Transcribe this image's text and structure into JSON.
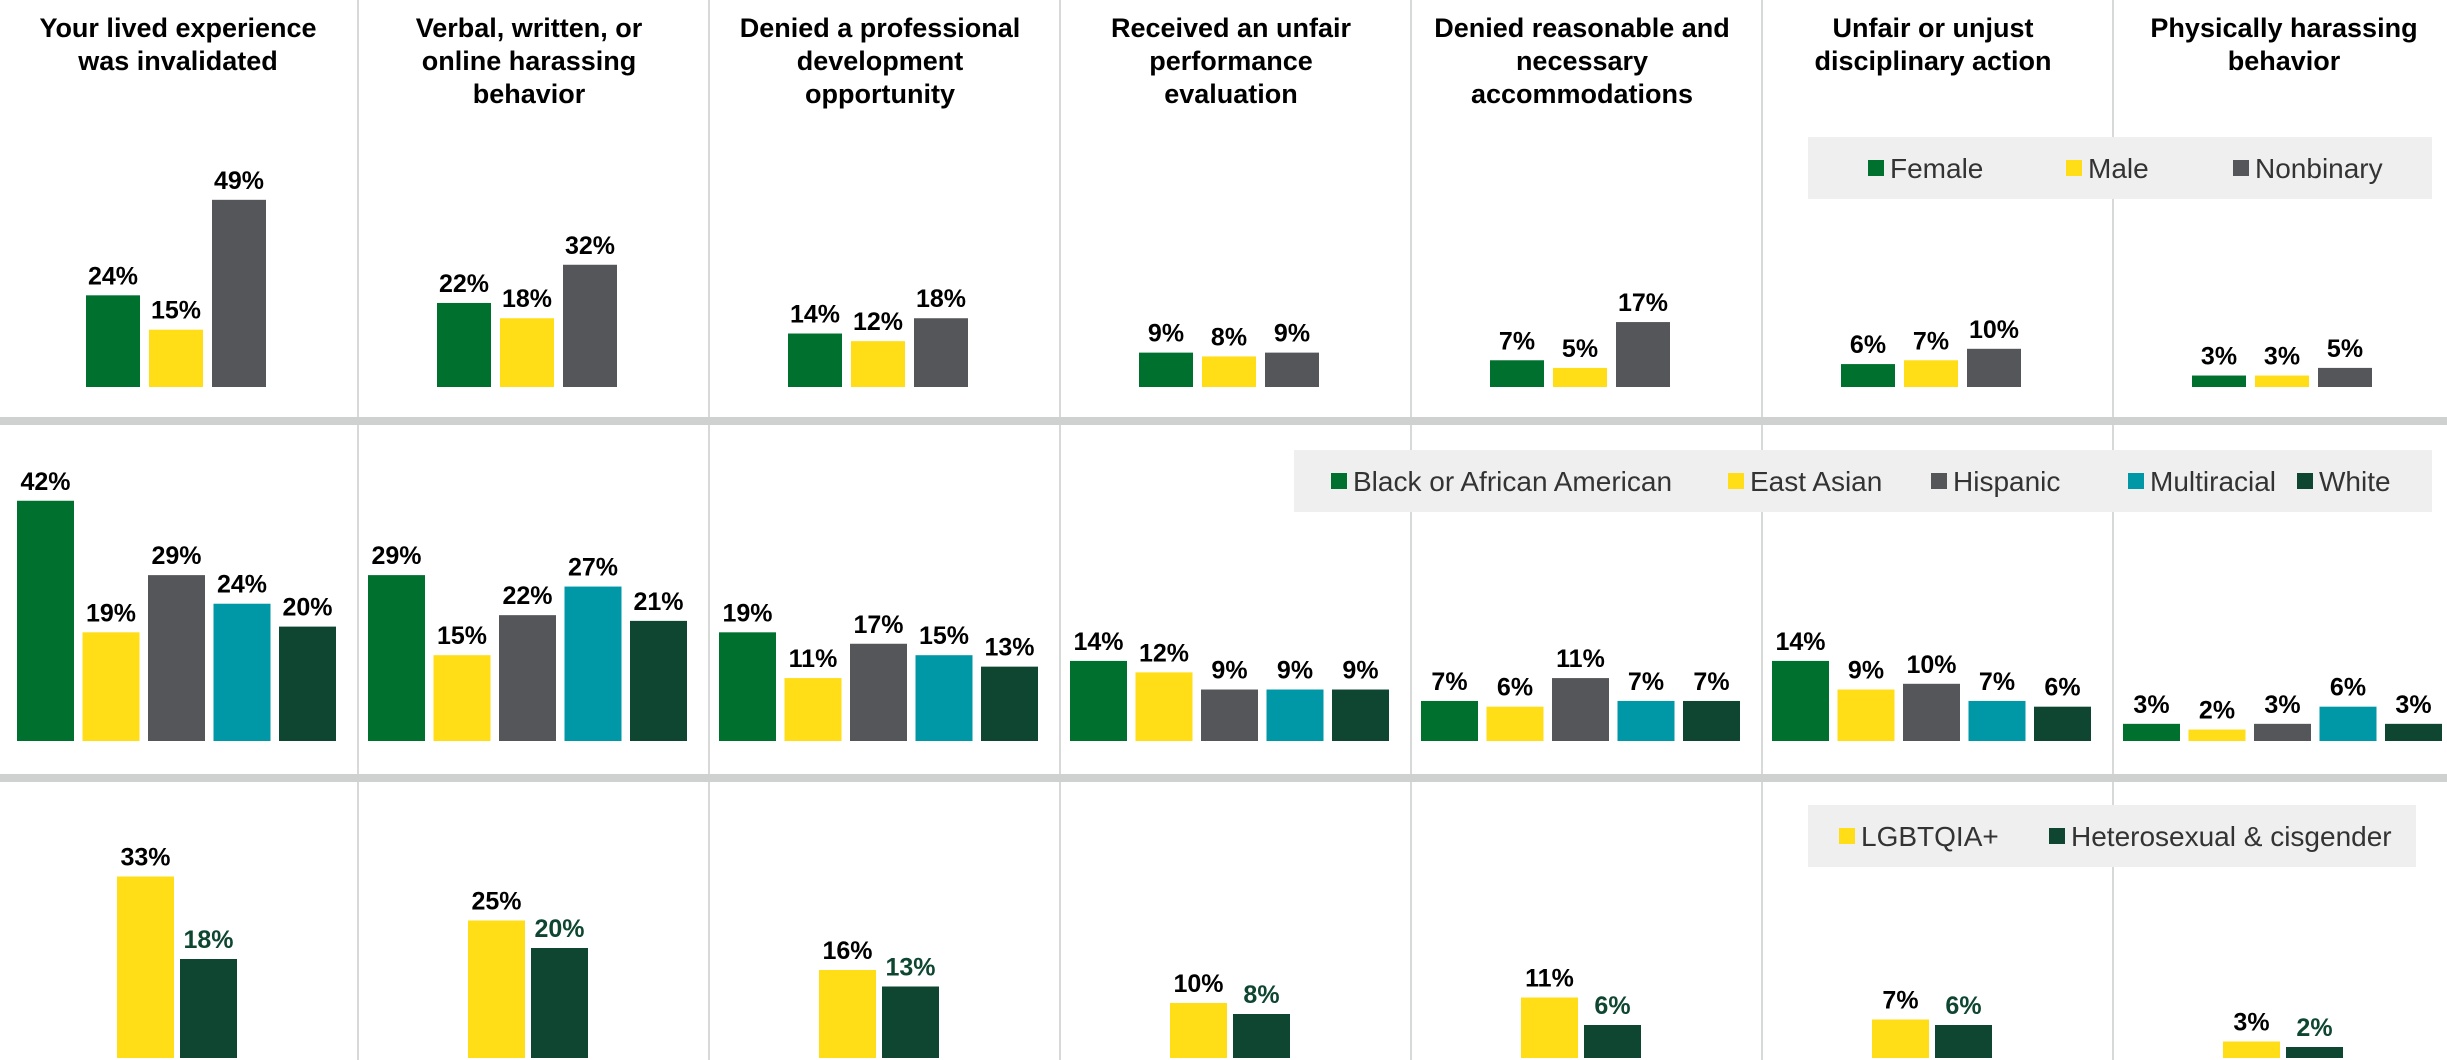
{
  "colors": {
    "female": "#00702F",
    "male": "#FFDE17",
    "nonbinary": "#545659",
    "black": "#00702F",
    "east_asian": "#FFDE17",
    "hispanic": "#545659",
    "multiracial": "#0097A7",
    "white": "#0E4631",
    "lgbtqia": "#FFDE17",
    "hetero": "#0E4631",
    "separator": "#CFD1D0",
    "divider": "#D7D8D8",
    "legend_bg": "#EFEFEF"
  },
  "chart_data": {
    "type": "bar",
    "categories": [
      "Your lived experience was invalidated",
      "Verbal, written, or online harassing behavior",
      "Denied a professional development opportunity",
      "Received an unfair performance evaluation",
      "Denied reasonable and necessary accommodations",
      "Unfair or unjust disciplinary action",
      "Physically harassing behavior"
    ],
    "category_lines": [
      [
        "Your lived experience",
        "was invalidated"
      ],
      [
        "Verbal, written, or",
        "online harassing",
        "behavior"
      ],
      [
        "Denied a professional",
        "development",
        "opportunity"
      ],
      [
        "Received an unfair",
        "performance",
        "evaluation"
      ],
      [
        "Denied reasonable and",
        "necessary",
        "accommodations"
      ],
      [
        "Unfair or unjust",
        "disciplinary action"
      ],
      [
        "Physically harassing",
        "behavior"
      ]
    ],
    "panels": [
      {
        "id": "gender",
        "legend": "top-right",
        "series": [
          {
            "name": "Female",
            "color_key": "female",
            "values": [
              24,
              22,
              14,
              9,
              7,
              6,
              3
            ]
          },
          {
            "name": "Male",
            "color_key": "male",
            "values": [
              15,
              18,
              12,
              8,
              5,
              7,
              3
            ]
          },
          {
            "name": "Nonbinary",
            "color_key": "nonbinary",
            "values": [
              49,
              32,
              18,
              9,
              17,
              10,
              5
            ]
          }
        ]
      },
      {
        "id": "race",
        "legend": "top-right",
        "series": [
          {
            "name": "Black or African American",
            "color_key": "black",
            "values": [
              42,
              29,
              19,
              14,
              7,
              14,
              3
            ]
          },
          {
            "name": "East Asian",
            "color_key": "east_asian",
            "values": [
              19,
              15,
              11,
              12,
              6,
              9,
              2
            ]
          },
          {
            "name": "Hispanic",
            "color_key": "hispanic",
            "values": [
              29,
              22,
              17,
              9,
              11,
              10,
              3
            ]
          },
          {
            "name": "Multiracial",
            "color_key": "multiracial",
            "values": [
              24,
              27,
              15,
              9,
              7,
              7,
              6
            ]
          },
          {
            "name": "White",
            "color_key": "white",
            "values": [
              20,
              21,
              13,
              9,
              7,
              6,
              3
            ]
          }
        ]
      },
      {
        "id": "orientation",
        "legend": "top-right",
        "series": [
          {
            "name": "LGBTQIA+",
            "color_key": "lgbtqia",
            "label_color": "#000000",
            "values": [
              33,
              25,
              16,
              10,
              11,
              7,
              3
            ]
          },
          {
            "name": "Heterosexual & cisgender",
            "color_key": "hetero",
            "label_color": "#0E4631",
            "values": [
              18,
              20,
              13,
              8,
              6,
              6,
              2
            ]
          }
        ]
      }
    ],
    "value_suffix": "%",
    "grid": false
  }
}
